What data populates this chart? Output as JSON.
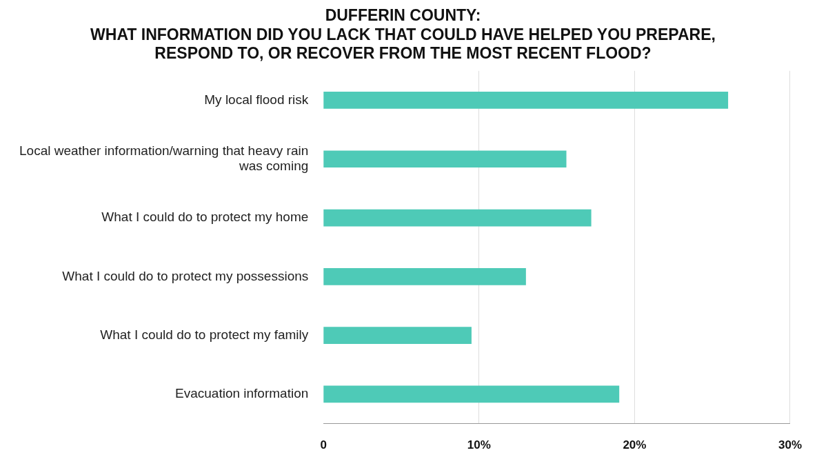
{
  "chart_data": {
    "type": "bar",
    "orientation": "horizontal",
    "title": "DUFFERIN COUNTY:\nWHAT INFORMATION DID YOU LACK THAT COULD HAVE HELPED YOU PREPARE,\nRESPOND TO, OR RECOVER FROM THE MOST RECENT FLOOD?",
    "categories": [
      "My local flood risk",
      "Local weather information/warning that heavy rain was coming",
      "What I could do to protect my home",
      "What I could do to protect my possessions",
      "What I could do to protect my family",
      "Evacuation information"
    ],
    "values": [
      26,
      15.6,
      17.2,
      13,
      9.5,
      19
    ],
    "color": "#4ecab7",
    "xlim": [
      0,
      30
    ],
    "xticks": [
      0,
      {
        "value": 10,
        "label": "10%"
      },
      {
        "value": 20,
        "label": "20%"
      },
      {
        "value": 30,
        "label": "30%"
      }
    ],
    "grid": "x",
    "legend": false
  }
}
